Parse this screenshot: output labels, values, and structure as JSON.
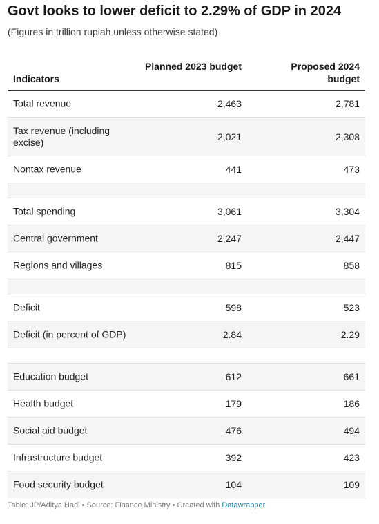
{
  "title": "Govt looks to lower deficit to 2.29% of GDP in 2024",
  "subtitle": "(Figures in trillion rupiah unless otherwise stated)",
  "chart_data": {
    "type": "table",
    "columns": [
      "Indicators",
      "Planned 2023 budget",
      "Proposed 2024 budget"
    ],
    "rows": [
      {
        "label": "Total revenue",
        "planned_2023": "2,463",
        "proposed_2024": "2,781"
      },
      {
        "label": "Tax revenue (including excise)",
        "planned_2023": "2,021",
        "proposed_2024": "2,308"
      },
      {
        "label": "Nontax revenue",
        "planned_2023": "441",
        "proposed_2024": "473"
      },
      {
        "label": "",
        "planned_2023": "",
        "proposed_2024": ""
      },
      {
        "label": "Total spending",
        "planned_2023": "3,061",
        "proposed_2024": "3,304"
      },
      {
        "label": "Central government",
        "planned_2023": "2,247",
        "proposed_2024": "2,447"
      },
      {
        "label": "Regions and villages",
        "planned_2023": "815",
        "proposed_2024": "858"
      },
      {
        "label": "",
        "planned_2023": "",
        "proposed_2024": ""
      },
      {
        "label": "Deficit",
        "planned_2023": "598",
        "proposed_2024": "523"
      },
      {
        "label": "Deficit (in percent of GDP)",
        "planned_2023": "2.84",
        "proposed_2024": "2.29"
      },
      {
        "label": "",
        "planned_2023": "",
        "proposed_2024": ""
      },
      {
        "label": "Education budget",
        "planned_2023": "612",
        "proposed_2024": "661"
      },
      {
        "label": "Health budget",
        "planned_2023": "179",
        "proposed_2024": "186"
      },
      {
        "label": "Social aid budget",
        "planned_2023": "476",
        "proposed_2024": "494"
      },
      {
        "label": "Infrastructure budget",
        "planned_2023": "392",
        "proposed_2024": "423"
      },
      {
        "label": "Food security budget",
        "planned_2023": "104",
        "proposed_2024": "109"
      }
    ]
  },
  "footer": {
    "text": "Table: JP/Aditya Hadi • Source: Finance Ministry • Created with ",
    "link": "Datawrapper"
  },
  "colors": {
    "row_shade": "#f5f5f5",
    "header_rule": "#333333",
    "link": "#1d81a2"
  }
}
